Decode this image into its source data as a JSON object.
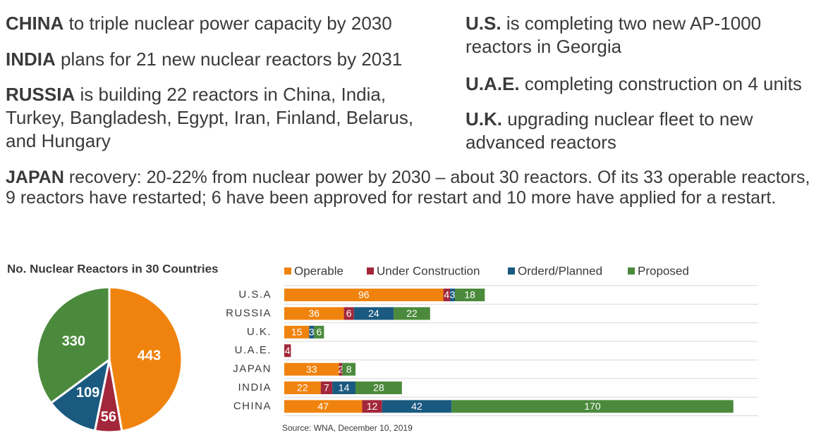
{
  "text_blocks": [
    {
      "lead": "CHINA",
      "text": "to triple nuclear power capacity by 2030"
    },
    {
      "lead": "INDIA",
      "text": "plans for 21 new nuclear reactors by 2031"
    },
    {
      "lead": "RUSSIA",
      "text": "is building 22 reactors in China, India, Turkey,  Bangladesh, Egypt, Iran, Finland, Belarus, and Hungary"
    },
    {
      "lead": "U.S.",
      "text": "is completing two new AP-1000 reactors in Georgia"
    },
    {
      "lead": "U.A.E.",
      "text": "completing construction on 4 units"
    },
    {
      "lead": "U.K.",
      "text": "upgrading nuclear fleet to new advanced reactors"
    },
    {
      "lead": "JAPAN",
      "text": "recovery: 20-22% from nuclear power by 2030 – about 30 reactors.  Of its 33 operable reactors, 9 reactors have restarted; 6 have been approved for restart and 10 more have applied for a restart."
    }
  ],
  "chart_data": [
    {
      "type": "pie",
      "title": "No. Nuclear Reactors in 30 Countries",
      "values": [
        443,
        56,
        109,
        330
      ],
      "colors": [
        "#f0830e",
        "#a3273a",
        "#1b5a80",
        "#4b8a3c"
      ]
    },
    {
      "type": "stacked-barh",
      "categories": [
        "U.S.A",
        "RUSSIA",
        "U.K.",
        "U.A.E.",
        "JAPAN",
        "INDIA",
        "CHINA"
      ],
      "series": [
        {
          "name": "Operable",
          "color": "#f0830e",
          "values": [
            96,
            36,
            15,
            0,
            33,
            22,
            47
          ]
        },
        {
          "name": "Under Construction",
          "color": "#a3273a",
          "values": [
            4,
            6,
            0,
            4,
            2,
            7,
            12
          ]
        },
        {
          "name": "Orderd/Planned",
          "color": "#1b5a80",
          "values": [
            3,
            24,
            3,
            0,
            0,
            14,
            42
          ]
        },
        {
          "name": "Proposed",
          "color": "#4b8a3c",
          "values": [
            18,
            22,
            6,
            0,
            8,
            28,
            170
          ]
        }
      ],
      "xlim": [
        0,
        286
      ],
      "note": "Source: WNA, December 10, 2019"
    }
  ]
}
